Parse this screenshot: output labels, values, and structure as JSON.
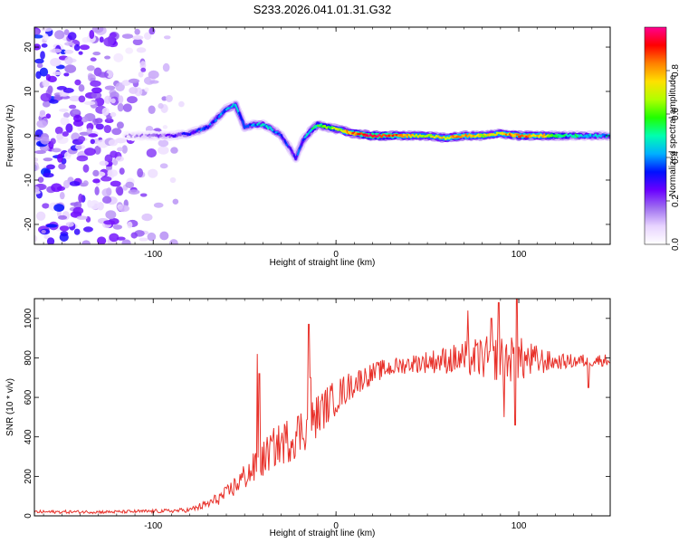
{
  "title": "S233.2026.041.01.31.G32",
  "chart_data": [
    {
      "type": "heatmap",
      "name": "spectrogram",
      "xlabel": "Height of straight line (km)",
      "ylabel": "Frequency (Hz)",
      "xlim": [
        -165,
        150
      ],
      "ylim": [
        -24.5,
        24.5
      ],
      "xticks": [
        -100,
        0,
        100
      ],
      "yticks": [
        -20,
        -10,
        0,
        10,
        20
      ],
      "colorbar": {
        "label": "Normalized spectral amplitude",
        "range": [
          0,
          1
        ],
        "ticks": [
          "0.0",
          "0.2",
          "0.4",
          "0.6",
          "0.8"
        ],
        "colors": [
          "#ffffff",
          "#e8d4ff",
          "#a070f0",
          "#6a00ff",
          "#0010ff",
          "#00b0ff",
          "#00ffb0",
          "#20ff00",
          "#b0ff00",
          "#ffe000",
          "#ff8000",
          "#ff0000",
          "#ff0090"
        ]
      },
      "signal_ridge": {
        "description_points_x": [
          -115,
          -100,
          -90,
          -80,
          -70,
          -60,
          -55,
          -50,
          -45,
          -40,
          -35,
          -30,
          -25,
          -22,
          -18,
          -14,
          -10,
          -5,
          0,
          10,
          20,
          30,
          40,
          50,
          60,
          70,
          80,
          90,
          100,
          110,
          120,
          130,
          140,
          150
        ],
        "frequency_hz": [
          0,
          0,
          0,
          0.5,
          2,
          6,
          7,
          2,
          2.5,
          2.5,
          1.5,
          0,
          -3,
          -5,
          -1,
          1,
          2.5,
          2,
          1.5,
          0.5,
          0,
          0,
          0,
          0,
          -0.5,
          0,
          0,
          0.5,
          0,
          0,
          0,
          0,
          0,
          0
        ],
        "amplitude": [
          0.1,
          0.15,
          0.2,
          0.3,
          0.35,
          0.4,
          0.45,
          0.35,
          0.4,
          0.45,
          0.4,
          0.35,
          0.3,
          0.3,
          0.35,
          0.5,
          0.55,
          0.6,
          0.65,
          0.85,
          0.95,
          0.9,
          0.75,
          0.7,
          0.75,
          0.8,
          0.7,
          0.75,
          0.85,
          0.8,
          0.6,
          0.5,
          0.45,
          0.4
        ]
      },
      "noise_region_x": [
        -165,
        -80
      ]
    },
    {
      "type": "line",
      "name": "snr",
      "xlabel": "Height of straight line (km)",
      "ylabel": "SNR (10 * v/v)",
      "xlim": [
        -165,
        150
      ],
      "ylim": [
        0,
        1100
      ],
      "xticks": [
        -100,
        0,
        100
      ],
      "yticks": [
        0,
        200,
        400,
        600,
        800,
        1000
      ],
      "color": "#e8312a",
      "trend_x": [
        -165,
        -120,
        -90,
        -80,
        -70,
        -60,
        -50,
        -42,
        -35,
        -25,
        -15,
        -5,
        5,
        15,
        25,
        40,
        60,
        80,
        100,
        120,
        150
      ],
      "trend_y": [
        20,
        20,
        25,
        30,
        60,
        110,
        200,
        260,
        340,
        390,
        460,
        560,
        640,
        700,
        740,
        770,
        790,
        800,
        790,
        780,
        790
      ],
      "noise_amp": [
        8,
        8,
        10,
        12,
        25,
        40,
        70,
        90,
        100,
        120,
        120,
        100,
        80,
        60,
        50,
        45,
        70,
        110,
        120,
        40,
        30
      ],
      "spikes": [
        {
          "x": -43,
          "y": 820
        },
        {
          "x": -42,
          "y": 720
        },
        {
          "x": -15,
          "y": 970
        },
        {
          "x": -14,
          "y": 700
        },
        {
          "x": 72,
          "y": 1040
        },
        {
          "x": 85,
          "y": 1000
        },
        {
          "x": 89,
          "y": 1080
        },
        {
          "x": 99,
          "y": 1100
        },
        {
          "x": 98,
          "y": 460
        },
        {
          "x": 92,
          "y": 500
        },
        {
          "x": 138,
          "y": 650
        }
      ]
    }
  ]
}
